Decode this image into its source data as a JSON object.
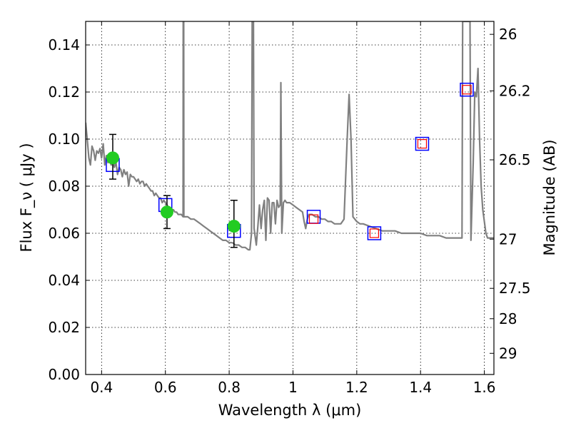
{
  "chart_data": {
    "type": "scatter",
    "xlabel": "Wavelength  λ (μm)",
    "ylabel": "Flux  F_ν  ( μJy )",
    "y2label": "Magnitude (AB)",
    "xlim": [
      0.35,
      1.63
    ],
    "ylim": [
      0.0,
      0.15
    ],
    "grid": true,
    "x_ticks": [
      {
        "value": 0.4,
        "label": "0.4"
      },
      {
        "value": 0.6,
        "label": "0.6"
      },
      {
        "value": 0.8,
        "label": "0.8"
      },
      {
        "value": 1.0,
        "label": "1"
      },
      {
        "value": 1.2,
        "label": "1.2"
      },
      {
        "value": 1.4,
        "label": "1.4"
      },
      {
        "value": 1.6,
        "label": "1.6"
      }
    ],
    "y_ticks": [
      {
        "value": 0.0,
        "label": "0.00"
      },
      {
        "value": 0.02,
        "label": "0.02"
      },
      {
        "value": 0.04,
        "label": "0.04"
      },
      {
        "value": 0.06,
        "label": "0.06"
      },
      {
        "value": 0.08,
        "label": "0.08"
      },
      {
        "value": 0.1,
        "label": "0.10"
      },
      {
        "value": 0.12,
        "label": "0.12"
      },
      {
        "value": 0.14,
        "label": "0.14"
      }
    ],
    "y2_ticks": [
      {
        "label": "26",
        "flux": 0.1445
      },
      {
        "label": "26.2",
        "flux": 0.1205
      },
      {
        "label": "26.5",
        "flux": 0.0912
      },
      {
        "label": "27",
        "flux": 0.0575
      },
      {
        "label": "27.5",
        "flux": 0.0366
      },
      {
        "label": "28",
        "flux": 0.0237
      },
      {
        "label": "29",
        "flux": 0.009
      }
    ],
    "series": [
      {
        "type": "line",
        "color": "#808080",
        "points": [
          [
            0.35,
            0.107
          ],
          [
            0.355,
            0.1
          ],
          [
            0.36,
            0.092
          ],
          [
            0.365,
            0.089
          ],
          [
            0.37,
            0.097
          ],
          [
            0.375,
            0.095
          ],
          [
            0.38,
            0.091
          ],
          [
            0.385,
            0.095
          ],
          [
            0.39,
            0.094
          ],
          [
            0.395,
            0.096
          ],
          [
            0.4,
            0.092
          ],
          [
            0.405,
            0.098
          ],
          [
            0.41,
            0.089
          ],
          [
            0.415,
            0.093
          ],
          [
            0.42,
            0.09
          ],
          [
            0.425,
            0.091
          ],
          [
            0.43,
            0.089
          ],
          [
            0.435,
            0.091
          ],
          [
            0.44,
            0.088
          ],
          [
            0.445,
            0.09
          ],
          [
            0.45,
            0.085
          ],
          [
            0.455,
            0.088
          ],
          [
            0.46,
            0.087
          ],
          [
            0.465,
            0.084
          ],
          [
            0.47,
            0.087
          ],
          [
            0.475,
            0.085
          ],
          [
            0.48,
            0.086
          ],
          [
            0.485,
            0.08
          ],
          [
            0.49,
            0.085
          ],
          [
            0.495,
            0.084
          ],
          [
            0.5,
            0.084
          ],
          [
            0.505,
            0.083
          ],
          [
            0.51,
            0.082
          ],
          [
            0.515,
            0.083
          ],
          [
            0.52,
            0.081
          ],
          [
            0.525,
            0.082
          ],
          [
            0.53,
            0.082
          ],
          [
            0.535,
            0.08
          ],
          [
            0.54,
            0.081
          ],
          [
            0.545,
            0.08
          ],
          [
            0.55,
            0.079
          ],
          [
            0.555,
            0.078
          ],
          [
            0.56,
            0.078
          ],
          [
            0.565,
            0.076
          ],
          [
            0.57,
            0.077
          ],
          [
            0.575,
            0.076
          ],
          [
            0.58,
            0.075
          ],
          [
            0.585,
            0.075
          ],
          [
            0.59,
            0.073
          ],
          [
            0.595,
            0.074
          ],
          [
            0.6,
            0.073
          ],
          [
            0.605,
            0.072
          ],
          [
            0.61,
            0.071
          ],
          [
            0.615,
            0.071
          ],
          [
            0.62,
            0.07
          ],
          [
            0.625,
            0.07
          ],
          [
            0.63,
            0.069
          ],
          [
            0.635,
            0.069
          ],
          [
            0.64,
            0.068
          ],
          [
            0.645,
            0.068
          ],
          [
            0.65,
            0.068
          ],
          [
            0.6555,
            0.067
          ],
          [
            0.656,
            0.15
          ],
          [
            0.6575,
            0.15
          ],
          [
            0.658,
            0.067
          ],
          [
            0.665,
            0.067
          ],
          [
            0.67,
            0.067
          ],
          [
            0.68,
            0.066
          ],
          [
            0.69,
            0.066
          ],
          [
            0.7,
            0.065
          ],
          [
            0.71,
            0.064
          ],
          [
            0.72,
            0.063
          ],
          [
            0.73,
            0.062
          ],
          [
            0.74,
            0.061
          ],
          [
            0.75,
            0.06
          ],
          [
            0.76,
            0.059
          ],
          [
            0.77,
            0.058
          ],
          [
            0.78,
            0.057
          ],
          [
            0.79,
            0.057
          ],
          [
            0.8,
            0.056
          ],
          [
            0.81,
            0.056
          ],
          [
            0.82,
            0.055
          ],
          [
            0.83,
            0.055
          ],
          [
            0.84,
            0.054
          ],
          [
            0.85,
            0.054
          ],
          [
            0.86,
            0.053
          ],
          [
            0.865,
            0.053
          ],
          [
            0.87,
            0.06
          ],
          [
            0.872,
            0.15
          ],
          [
            0.876,
            0.15
          ],
          [
            0.878,
            0.062
          ],
          [
            0.885,
            0.055
          ],
          [
            0.89,
            0.063
          ],
          [
            0.895,
            0.072
          ],
          [
            0.9,
            0.062
          ],
          [
            0.905,
            0.07
          ],
          [
            0.91,
            0.074
          ],
          [
            0.915,
            0.057
          ],
          [
            0.92,
            0.075
          ],
          [
            0.925,
            0.074
          ],
          [
            0.93,
            0.06
          ],
          [
            0.935,
            0.073
          ],
          [
            0.94,
            0.073
          ],
          [
            0.945,
            0.064
          ],
          [
            0.95,
            0.074
          ],
          [
            0.955,
            0.071
          ],
          [
            0.96,
            0.072
          ],
          [
            0.962,
            0.124
          ],
          [
            0.965,
            0.06
          ],
          [
            0.97,
            0.073
          ],
          [
            0.975,
            0.074
          ],
          [
            0.98,
            0.073
          ],
          [
            0.99,
            0.073
          ],
          [
            1.0,
            0.072
          ],
          [
            1.01,
            0.071
          ],
          [
            1.02,
            0.07
          ],
          [
            1.03,
            0.069
          ],
          [
            1.035,
            0.065
          ],
          [
            1.04,
            0.062
          ],
          [
            1.045,
            0.066
          ],
          [
            1.05,
            0.068
          ],
          [
            1.06,
            0.068
          ],
          [
            1.07,
            0.067
          ],
          [
            1.08,
            0.067
          ],
          [
            1.09,
            0.066
          ],
          [
            1.1,
            0.066
          ],
          [
            1.11,
            0.065
          ],
          [
            1.12,
            0.065
          ],
          [
            1.13,
            0.064
          ],
          [
            1.14,
            0.064
          ],
          [
            1.15,
            0.064
          ],
          [
            1.16,
            0.066
          ],
          [
            1.17,
            0.1
          ],
          [
            1.176,
            0.119
          ],
          [
            1.182,
            0.1
          ],
          [
            1.188,
            0.067
          ],
          [
            1.2,
            0.065
          ],
          [
            1.21,
            0.064
          ],
          [
            1.22,
            0.064
          ],
          [
            1.24,
            0.063
          ],
          [
            1.26,
            0.062
          ],
          [
            1.28,
            0.061
          ],
          [
            1.3,
            0.061
          ],
          [
            1.32,
            0.061
          ],
          [
            1.34,
            0.06
          ],
          [
            1.36,
            0.06
          ],
          [
            1.38,
            0.06
          ],
          [
            1.4,
            0.06
          ],
          [
            1.42,
            0.059
          ],
          [
            1.44,
            0.059
          ],
          [
            1.46,
            0.059
          ],
          [
            1.48,
            0.058
          ],
          [
            1.5,
            0.058
          ],
          [
            1.52,
            0.058
          ],
          [
            1.53,
            0.058
          ],
          [
            1.532,
            0.15
          ],
          [
            1.555,
            0.15
          ],
          [
            1.558,
            0.057
          ],
          [
            1.565,
            0.09
          ],
          [
            1.57,
            0.12
          ],
          [
            1.575,
            0.118
          ],
          [
            1.58,
            0.13
          ],
          [
            1.585,
            0.1
          ],
          [
            1.59,
            0.08
          ],
          [
            1.595,
            0.07
          ],
          [
            1.6,
            0.065
          ],
          [
            1.605,
            0.06
          ],
          [
            1.61,
            0.058
          ],
          [
            1.62,
            0.058
          ],
          [
            1.63,
            0.058
          ]
        ]
      },
      {
        "type": "scatter",
        "marker": "square",
        "color": "#0000ff",
        "points": [
          [
            0.435,
            0.089
          ],
          [
            0.6,
            0.072
          ],
          [
            0.815,
            0.061
          ],
          [
            1.065,
            0.067
          ],
          [
            1.255,
            0.06
          ],
          [
            1.405,
            0.098
          ],
          [
            1.545,
            0.121
          ]
        ]
      },
      {
        "type": "scatter",
        "marker": "small-square",
        "color": "#ff0000",
        "points": [
          [
            1.065,
            0.066
          ],
          [
            1.255,
            0.06
          ],
          [
            1.405,
            0.098
          ],
          [
            1.545,
            0.121
          ]
        ]
      },
      {
        "type": "errorbar",
        "marker": "circle",
        "color": "#22cc22",
        "points": [
          {
            "x": 0.435,
            "y": 0.092,
            "err_low": 0.009,
            "err_high": 0.01
          },
          {
            "x": 0.605,
            "y": 0.069,
            "err_low": 0.007,
            "err_high": 0.007
          },
          {
            "x": 0.815,
            "y": 0.063,
            "err_low": 0.009,
            "err_high": 0.011
          }
        ]
      }
    ]
  }
}
